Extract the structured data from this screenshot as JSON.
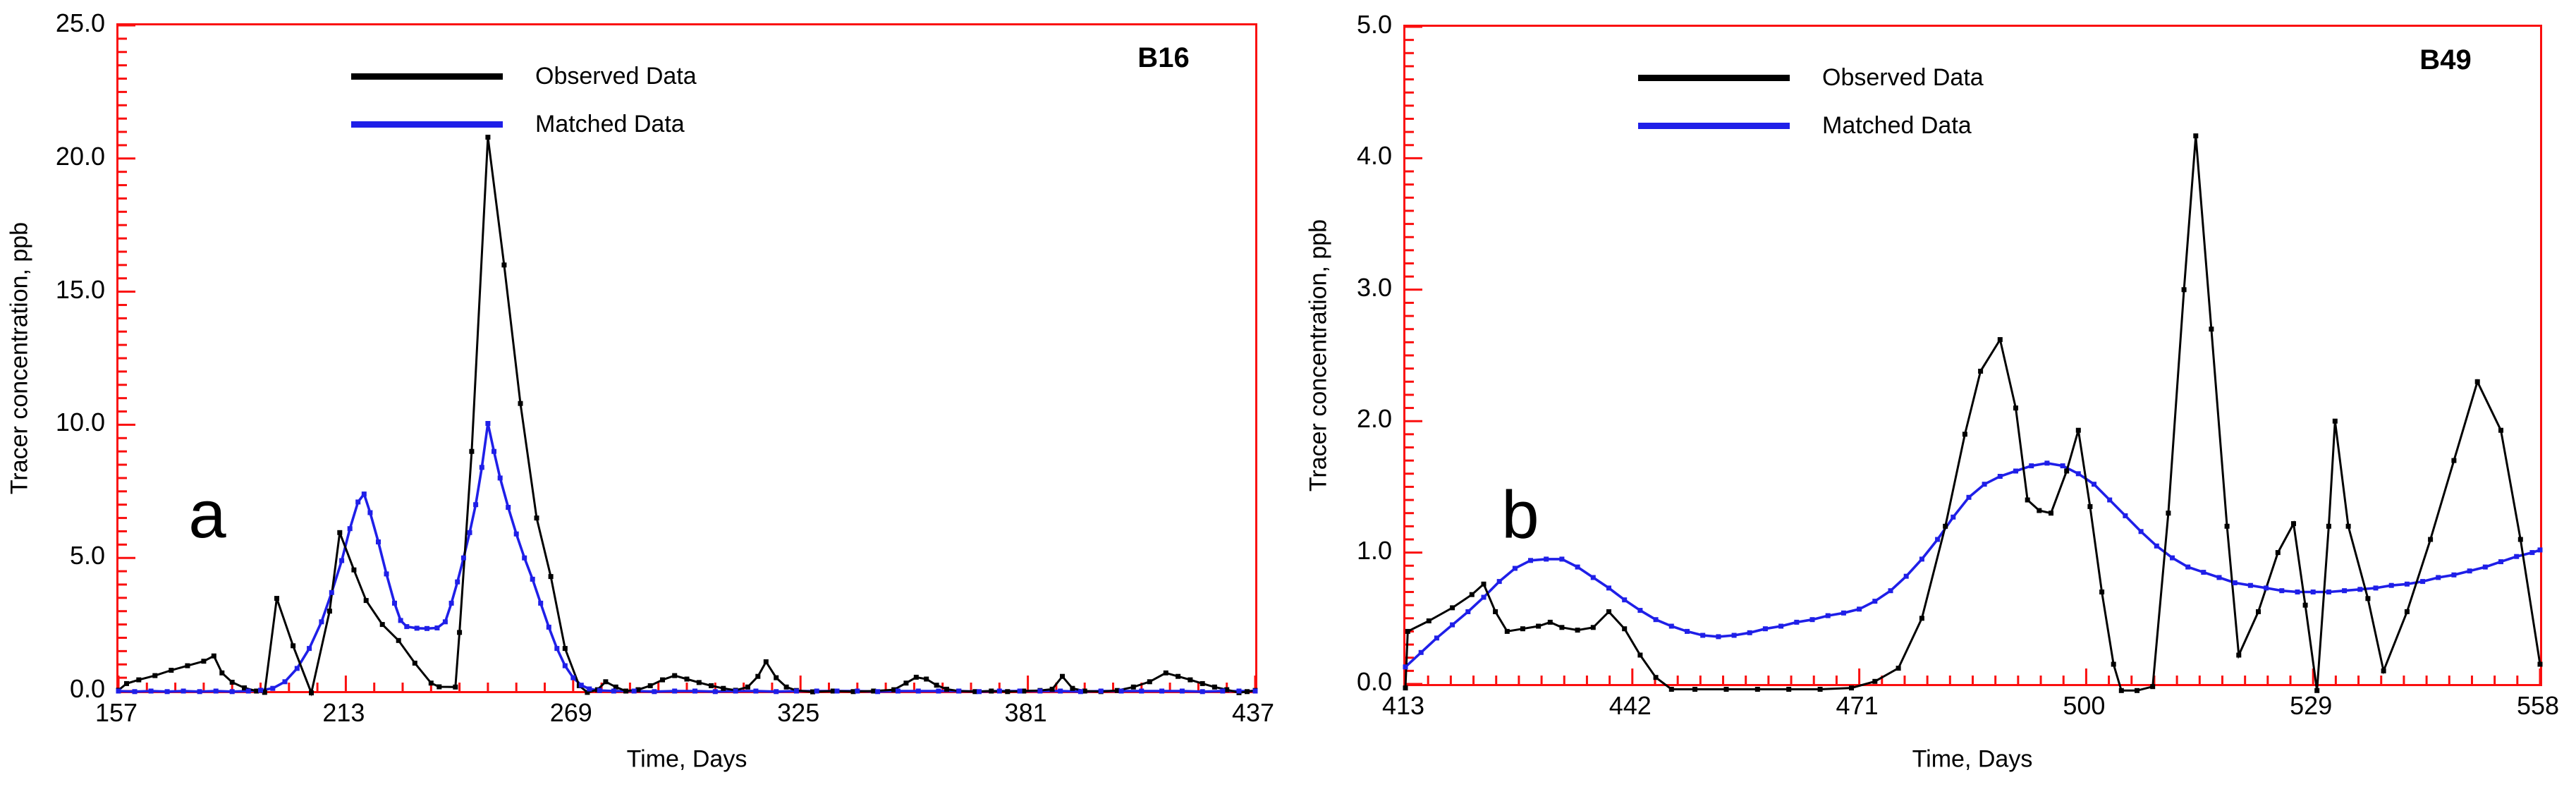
{
  "colors": {
    "background": "#ffffff",
    "frame": "#fa0f0f",
    "observed": "#000000",
    "matched": "#1f1fe8",
    "text": "#000000"
  },
  "chart_data": [
    {
      "type": "line",
      "station": "B16",
      "panel_letter": "a",
      "xlabel": "Time, Days",
      "ylabel": "Tracer concentration, ppb",
      "xlim": [
        157,
        437
      ],
      "ylim": [
        0,
        25
      ],
      "grid": false,
      "legend_position": "top-left",
      "x_minor_per_major": 8,
      "y_minor_per_major": 10,
      "x_ticks": [
        {
          "v": 157,
          "label": "157"
        },
        {
          "v": 213,
          "label": "213"
        },
        {
          "v": 269,
          "label": "269"
        },
        {
          "v": 325,
          "label": "325"
        },
        {
          "v": 381,
          "label": "381"
        },
        {
          "v": 437,
          "label": "437"
        }
      ],
      "y_ticks": [
        {
          "v": 0,
          "label": "0.0"
        },
        {
          "v": 5,
          "label": "5.0"
        },
        {
          "v": 10,
          "label": "10.0"
        },
        {
          "v": 15,
          "label": "15.0"
        },
        {
          "v": 20,
          "label": "20.0"
        },
        {
          "v": 25,
          "label": "25.0"
        }
      ],
      "series": [
        {
          "name": "Observed Data",
          "color": "#000000",
          "x": [
            157,
            159,
            162,
            166,
            170,
            174,
            178,
            180.5,
            182.5,
            185,
            188,
            191,
            193,
            196,
            200,
            204.5,
            209,
            211.5,
            215,
            218,
            222,
            226,
            230,
            234,
            236,
            240,
            241,
            244,
            248,
            252,
            256,
            260,
            263.5,
            267,
            270.5,
            272.5,
            275,
            277,
            279.5,
            282,
            285,
            288,
            291,
            294,
            297,
            300,
            303,
            306,
            309,
            312,
            314.5,
            316.5,
            319,
            321.5,
            324,
            328,
            333,
            338,
            343,
            348,
            351,
            353.5,
            356,
            358.5,
            361,
            364,
            368,
            372,
            376,
            380,
            384,
            387,
            389.5,
            392,
            395,
            399,
            403,
            407,
            411,
            415,
            418,
            421,
            424,
            427,
            430,
            433,
            435,
            437
          ],
          "y": [
            0.03,
            0.28,
            0.42,
            0.58,
            0.78,
            0.95,
            1.12,
            1.32,
            0.68,
            0.33,
            0.12,
            0,
            -0.05,
            3.48,
            1.7,
            -0.07,
            3.0,
            5.95,
            4.55,
            3.4,
            2.5,
            1.9,
            1.05,
            0.3,
            0.16,
            0.15,
            2.2,
            9.0,
            20.8,
            16.0,
            10.8,
            6.5,
            4.3,
            1.6,
            0.2,
            -0.05,
            0.05,
            0.35,
            0.15,
            0,
            0.05,
            0.2,
            0.42,
            0.58,
            0.45,
            0.32,
            0.2,
            0.1,
            0.03,
            0.15,
            0.55,
            1.1,
            0.5,
            0.15,
            0.02,
            -0.03,
            0,
            -0.02,
            0,
            0.05,
            0.3,
            0.52,
            0.45,
            0.22,
            0.07,
            0,
            -0.02,
            0,
            -0.02,
            0,
            0.02,
            0.07,
            0.55,
            0.1,
            0,
            -0.02,
            0.02,
            0.15,
            0.35,
            0.68,
            0.55,
            0.42,
            0.28,
            0.15,
            0.05,
            -0.06,
            -0.02,
            0.02
          ]
        },
        {
          "name": "Matched Data",
          "color": "#1f1fe8",
          "x": [
            157,
            161,
            165,
            169,
            173,
            177,
            181,
            185,
            189,
            192,
            195,
            198,
            201,
            204,
            207,
            209.5,
            212,
            214,
            216,
            217.5,
            219,
            221,
            223,
            225,
            226.5,
            228,
            230.5,
            233,
            235.5,
            237.5,
            239,
            240.5,
            242,
            243.5,
            245,
            246.5,
            248,
            249.5,
            251,
            253,
            255,
            257,
            259,
            261,
            263,
            265,
            267,
            269,
            271,
            273,
            275.5,
            279,
            284,
            289,
            294,
            299,
            304,
            309,
            314,
            319,
            324,
            329,
            334,
            339,
            344,
            349,
            354,
            359,
            364,
            369,
            374,
            379,
            384,
            389,
            394,
            399,
            404,
            409,
            414,
            419,
            424,
            429,
            433,
            437
          ],
          "y": [
            0,
            -0.02,
            0,
            -0.02,
            0,
            -0.02,
            0,
            -0.02,
            0,
            0.03,
            0.1,
            0.35,
            0.85,
            1.6,
            2.6,
            3.7,
            4.9,
            6.1,
            7.1,
            7.4,
            6.7,
            5.6,
            4.4,
            3.3,
            2.65,
            2.42,
            2.36,
            2.35,
            2.37,
            2.6,
            3.3,
            4.1,
            5.0,
            5.95,
            7.0,
            8.4,
            10.05,
            9.0,
            8.0,
            6.9,
            5.9,
            5.0,
            4.2,
            3.3,
            2.4,
            1.6,
            0.95,
            0.5,
            0.22,
            0.08,
            0.02,
            0,
            0,
            -0.02,
            0,
            0,
            -0.02,
            0,
            0,
            -0.02,
            0,
            0,
            0,
            0,
            -0.02,
            0,
            0,
            0,
            0,
            -0.02,
            0,
            0,
            0,
            0,
            -0.02,
            0,
            0,
            0,
            0,
            0,
            -0.02,
            0,
            0,
            0
          ]
        }
      ]
    },
    {
      "type": "line",
      "station": "B49",
      "panel_letter": "b",
      "xlabel": "Time, Days",
      "ylabel": "Tracer concentration, ppb",
      "xlim": [
        413,
        558
      ],
      "ylim": [
        0,
        5
      ],
      "grid": false,
      "legend_position": "top-left",
      "x_minor_per_major": 10,
      "y_minor_per_major": 10,
      "x_ticks": [
        {
          "v": 413,
          "label": "413"
        },
        {
          "v": 442,
          "label": "442"
        },
        {
          "v": 471,
          "label": "471"
        },
        {
          "v": 500,
          "label": "500"
        },
        {
          "v": 529,
          "label": "529"
        },
        {
          "v": 558,
          "label": "558"
        }
      ],
      "y_ticks": [
        {
          "v": 0,
          "label": "0.0"
        },
        {
          "v": 1,
          "label": "1.0"
        },
        {
          "v": 2,
          "label": "2.0"
        },
        {
          "v": 3,
          "label": "3.0"
        },
        {
          "v": 4,
          "label": "4.0"
        },
        {
          "v": 5,
          "label": "5.0"
        }
      ],
      "series": [
        {
          "name": "Observed Data",
          "color": "#000000",
          "x": [
            413,
            413.3,
            416,
            419,
            421.5,
            423,
            424.5,
            426,
            428,
            430,
            431.5,
            433,
            435,
            437,
            439,
            441,
            443,
            445,
            447,
            450,
            454,
            458,
            462,
            466,
            470,
            473,
            476,
            479,
            482,
            484.5,
            486.5,
            489,
            491,
            492.5,
            494,
            495.5,
            497.5,
            499,
            500.5,
            502,
            503.5,
            504.5,
            506.5,
            508.5,
            510.5,
            512.5,
            514,
            516,
            518,
            519.5,
            522,
            524.5,
            526.5,
            528,
            529.5,
            531,
            531.8,
            533.5,
            536,
            538,
            541,
            544,
            547,
            550,
            553,
            555.5,
            558
          ],
          "y": [
            -0.03,
            0.4,
            0.48,
            0.58,
            0.68,
            0.76,
            0.55,
            0.4,
            0.42,
            0.44,
            0.47,
            0.43,
            0.41,
            0.43,
            0.55,
            0.42,
            0.22,
            0.05,
            -0.04,
            -0.04,
            -0.04,
            -0.04,
            -0.04,
            -0.04,
            -0.03,
            0.02,
            0.12,
            0.5,
            1.2,
            1.9,
            2.38,
            2.62,
            2.1,
            1.4,
            1.32,
            1.3,
            1.62,
            1.93,
            1.35,
            0.7,
            0.15,
            -0.05,
            -0.05,
            -0.02,
            1.3,
            3.0,
            4.17,
            2.7,
            1.2,
            0.22,
            0.55,
            1.0,
            1.22,
            0.6,
            -0.05,
            1.2,
            2.0,
            1.2,
            0.65,
            0.1,
            0.55,
            1.1,
            1.7,
            2.3,
            1.93,
            1.1,
            0.15
          ]
        },
        {
          "name": "Matched Data",
          "color": "#1f1fe8",
          "x": [
            413,
            415,
            417,
            419,
            421,
            423,
            425,
            427,
            429,
            431,
            433,
            435,
            437,
            439,
            441,
            443,
            445,
            447,
            449,
            451,
            453,
            455,
            457,
            459,
            461,
            463,
            465,
            467,
            469,
            471,
            473,
            475,
            477,
            479,
            481,
            483,
            485,
            487,
            489,
            491,
            493,
            495,
            497,
            499,
            501,
            503,
            505,
            507,
            509,
            511,
            513,
            515,
            517,
            519,
            521,
            523,
            525,
            527,
            529,
            531,
            533,
            535,
            537,
            539,
            541,
            543,
            545,
            547,
            549,
            551,
            553,
            555,
            557,
            558
          ],
          "y": [
            0.13,
            0.24,
            0.35,
            0.45,
            0.55,
            0.66,
            0.78,
            0.88,
            0.94,
            0.95,
            0.95,
            0.89,
            0.81,
            0.73,
            0.64,
            0.56,
            0.49,
            0.44,
            0.4,
            0.37,
            0.36,
            0.37,
            0.39,
            0.42,
            0.44,
            0.47,
            0.49,
            0.52,
            0.54,
            0.57,
            0.63,
            0.71,
            0.82,
            0.95,
            1.1,
            1.27,
            1.42,
            1.52,
            1.58,
            1.62,
            1.66,
            1.68,
            1.66,
            1.6,
            1.52,
            1.4,
            1.28,
            1.16,
            1.05,
            0.96,
            0.89,
            0.85,
            0.81,
            0.77,
            0.75,
            0.73,
            0.71,
            0.7,
            0.7,
            0.7,
            0.71,
            0.72,
            0.73,
            0.75,
            0.76,
            0.78,
            0.81,
            0.83,
            0.86,
            0.89,
            0.93,
            0.97,
            1.0,
            1.02
          ]
        }
      ]
    }
  ]
}
